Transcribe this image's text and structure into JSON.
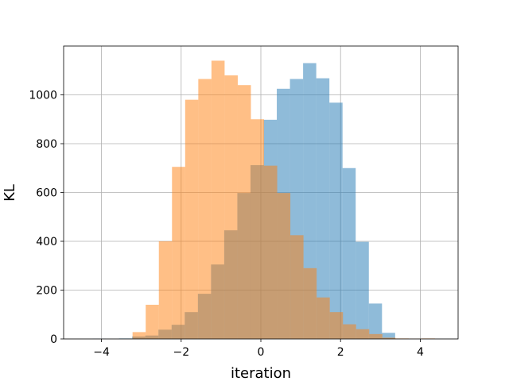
{
  "chart_data": {
    "type": "histogram",
    "xlabel": "iteration",
    "ylabel": "KL",
    "xlim": [
      -4.95,
      4.95
    ],
    "ylim": [
      0,
      1200
    ],
    "xticks": [
      -4,
      -2,
      0,
      2,
      4
    ],
    "xtick_labels": [
      "−4",
      "−2",
      "0",
      "2",
      "4"
    ],
    "yticks": [
      0,
      200,
      400,
      600,
      800,
      1000
    ],
    "ytick_labels": [
      "0",
      "200",
      "400",
      "600",
      "800",
      "1000"
    ],
    "grid": true,
    "series": [
      {
        "color": "#1f77b4",
        "opacity": 0.5,
        "bin_edges": [
          -4.22,
          -3.89,
          -3.56,
          -3.23,
          -2.9,
          -2.57,
          -2.24,
          -1.91,
          -1.58,
          -1.25,
          -0.92,
          -0.59,
          -0.26,
          0.07,
          0.4,
          0.73,
          1.06,
          1.39,
          1.72,
          2.05,
          2.38,
          2.71,
          3.04,
          3.37
        ],
        "counts": [
          1,
          0,
          2,
          10,
          14,
          38,
          58,
          110,
          185,
          305,
          445,
          598,
          712,
          898,
          1025,
          1065,
          1130,
          1068,
          968,
          700,
          398,
          145,
          25
        ]
      },
      {
        "color": "#ff7f0e",
        "opacity": 0.5,
        "bin_edges": [
          -3.22,
          -2.89,
          -2.56,
          -2.23,
          -1.9,
          -1.57,
          -1.24,
          -0.91,
          -0.58,
          -0.25,
          0.08,
          0.41,
          0.74,
          1.07,
          1.4,
          1.73,
          2.06,
          2.39,
          2.72,
          3.05,
          3.38,
          3.71,
          4.04,
          4.37
        ],
        "counts": [
          28,
          140,
          400,
          705,
          980,
          1065,
          1140,
          1080,
          1040,
          900,
          710,
          598,
          425,
          290,
          170,
          110,
          60,
          40,
          20,
          5,
          2,
          1,
          2
        ]
      }
    ]
  }
}
